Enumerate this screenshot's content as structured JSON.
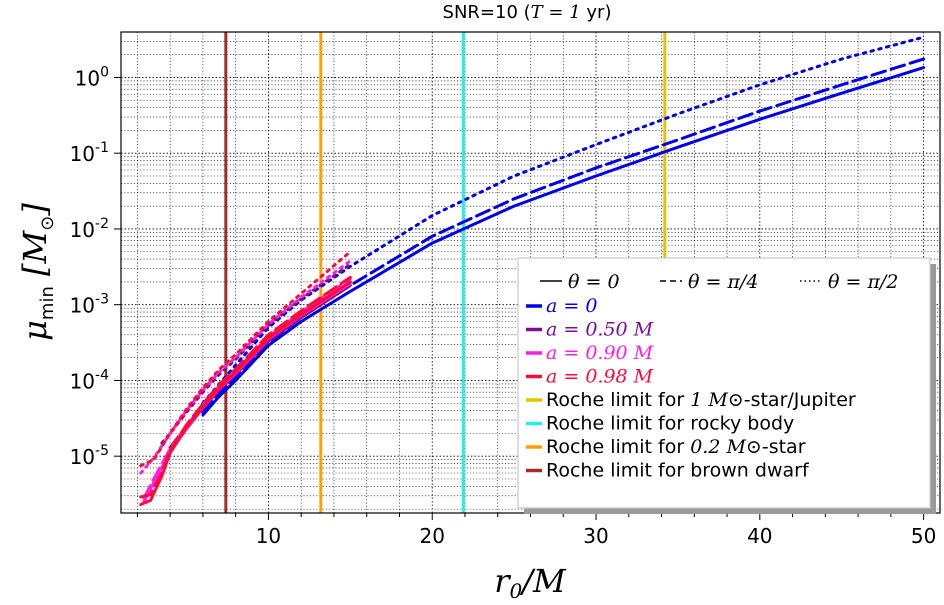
{
  "chart_data": {
    "type": "line",
    "title": "SNR=10  (T = 1 yr)",
    "xlabel": "r0/M",
    "ylabel": "μmin [M⊙]",
    "xlim": [
      1,
      51
    ],
    "ylim_log10": [
      -5.75,
      0.6
    ],
    "yscale": "log",
    "grid": "major-and-minor",
    "x_ticks": [
      10,
      20,
      30,
      40,
      50
    ],
    "y_ticks": [
      {
        "exp": -5,
        "label": "10-5"
      },
      {
        "exp": -4,
        "label": "10-4"
      },
      {
        "exp": -3,
        "label": "10-3"
      },
      {
        "exp": -2,
        "label": "10-2"
      },
      {
        "exp": -1,
        "label": "10-1"
      },
      {
        "exp": 0,
        "label": "100"
      }
    ],
    "theta_legend": {
      "solid": "θ = 0",
      "dashed": "θ = π/4",
      "dotted": "θ = π/2"
    },
    "spin_series": [
      {
        "name": "a = 0",
        "color": "#0000e6"
      },
      {
        "name": "a = 0.50 M",
        "color": "#7a0f8f"
      },
      {
        "name": "a = 0.90 M",
        "color": "#ff1fe0"
      },
      {
        "name": "a = 0.98 M",
        "color": "#ff0a3c"
      }
    ],
    "series": [
      {
        "spin": "a = 0",
        "style": "solid",
        "color": "#0000e6",
        "x": [
          6,
          7,
          8,
          10,
          12,
          15,
          20,
          25,
          30,
          35,
          40,
          45,
          50
        ],
        "y": [
          3.5e-05,
          6.2e-05,
          0.0001,
          0.00029,
          0.0006,
          0.0015,
          0.0065,
          0.02,
          0.05,
          0.12,
          0.28,
          0.62,
          1.35
        ]
      },
      {
        "spin": "a = 0",
        "style": "dashed",
        "color": "#0000e6",
        "x": [
          6,
          7,
          8,
          10,
          12,
          15,
          20,
          25,
          30,
          35,
          40,
          45,
          50
        ],
        "y": [
          3.8e-05,
          6.8e-05,
          0.00011,
          0.00032,
          0.00068,
          0.0018,
          0.008,
          0.025,
          0.064,
          0.15,
          0.36,
          0.8,
          1.75
        ]
      },
      {
        "spin": "a = 0",
        "style": "dotted",
        "color": "#0000e6",
        "x": [
          6,
          7,
          8,
          10,
          12,
          15,
          20,
          25,
          30,
          35,
          40,
          45,
          50
        ],
        "y": [
          5e-05,
          9e-05,
          0.00016,
          0.0005,
          0.00115,
          0.0032,
          0.015,
          0.05,
          0.13,
          0.33,
          0.8,
          1.75,
          3.4
        ]
      },
      {
        "spin": "a = 0.50 M",
        "style": "solid",
        "color": "#7a0f8f",
        "x": [
          4,
          5,
          6,
          7,
          8,
          10,
          12,
          15
        ],
        "y": [
          1.2e-05,
          2.3e-05,
          4.3e-05,
          7.5e-05,
          0.00012,
          0.00033,
          0.00068,
          0.0018
        ]
      },
      {
        "spin": "a = 0.50 M",
        "style": "dashed",
        "color": "#7a0f8f",
        "x": [
          4,
          5,
          6,
          7,
          8,
          10,
          12,
          15
        ],
        "y": [
          1.3e-05,
          2.5e-05,
          4.7e-05,
          8.2e-05,
          0.00013,
          0.00036,
          0.00075,
          0.002
        ]
      },
      {
        "spin": "a = 0.50 M",
        "style": "dotted",
        "color": "#7a0f8f",
        "x": [
          3.5,
          4,
          5,
          6,
          7,
          8,
          10,
          12,
          15
        ],
        "y": [
          1.5e-05,
          2e-05,
          3.8e-05,
          7e-05,
          0.00012,
          0.00019,
          0.00054,
          0.0012,
          0.0034
        ]
      },
      {
        "spin": "a = 0.90 M",
        "style": "solid",
        "color": "#ff1fe0",
        "x": [
          2.4,
          3,
          4,
          5,
          6,
          7,
          8,
          10,
          12,
          15
        ],
        "y": [
          2.5e-06,
          4.5e-06,
          1.15e-05,
          2.3e-05,
          4.4e-05,
          7.8e-05,
          0.000125,
          0.00035,
          0.00072,
          0.0019
        ]
      },
      {
        "spin": "a = 0.90 M",
        "style": "dashed",
        "color": "#ff1fe0",
        "x": [
          2.4,
          3,
          4,
          5,
          6,
          7,
          8,
          10,
          12,
          15
        ],
        "y": [
          2.8e-06,
          5e-06,
          1.25e-05,
          2.5e-05,
          4.8e-05,
          8.5e-05,
          0.000135,
          0.00038,
          0.0008,
          0.0022
        ]
      },
      {
        "spin": "a = 0.90 M",
        "style": "dotted",
        "color": "#ff1fe0",
        "x": [
          2.2,
          3,
          4,
          5,
          6,
          7,
          8,
          10,
          12,
          15
        ],
        "y": [
          6e-06,
          9.5e-06,
          2e-05,
          4e-05,
          7.5e-05,
          0.00013,
          0.0002,
          0.00055,
          0.00125,
          0.0038
        ]
      },
      {
        "spin": "a = 0.98 M",
        "style": "solid",
        "color": "#ff0a3c",
        "x": [
          2.2,
          2.8,
          3.5,
          4,
          5,
          6,
          7,
          8,
          10,
          12,
          15
        ],
        "y": [
          2.3e-06,
          2.6e-06,
          5.5e-06,
          1.1e-05,
          2.4e-05,
          4.5e-05,
          8e-05,
          0.00013,
          0.00036,
          0.00074,
          0.002
        ]
      },
      {
        "spin": "a = 0.98 M",
        "style": "dashed",
        "color": "#ff0a3c",
        "x": [
          2.2,
          2.8,
          3.5,
          4,
          5,
          6,
          7,
          8,
          10,
          12,
          15
        ],
        "y": [
          2.9e-06,
          3.1e-06,
          6e-06,
          1.2e-05,
          2.6e-05,
          4.9e-05,
          8.8e-05,
          0.000142,
          0.0004,
          0.00083,
          0.0023
        ]
      },
      {
        "spin": "a = 0.98 M",
        "style": "dotted",
        "color": "#ff0a3c",
        "x": [
          2.2,
          3,
          4,
          5,
          6,
          7,
          8,
          10,
          12,
          15
        ],
        "y": [
          7.5e-06,
          9e-06,
          2e-05,
          4.2e-05,
          8e-05,
          0.00014,
          0.00022,
          0.0006,
          0.0014,
          0.005
        ]
      }
    ],
    "vertical_lines": [
      {
        "x": 34.2,
        "color": "#e6c400",
        "label_pre": "Roche limit for ",
        "label_math": "1 M⊙",
        "label_post": "-star/Jupiter"
      },
      {
        "x": 21.9,
        "color": "#22f0f0",
        "label_pre": "Roche limit for rocky body",
        "label_math": "",
        "label_post": ""
      },
      {
        "x": 13.2,
        "color": "#ffa000",
        "label_pre": "Roche limit for ",
        "label_math": "0.2 M⊙",
        "label_post": "-star"
      },
      {
        "x": 7.4,
        "color": "#a52a2a",
        "label_pre": "Roche limit for brown dwarf",
        "label_math": "",
        "label_post": ""
      }
    ]
  }
}
